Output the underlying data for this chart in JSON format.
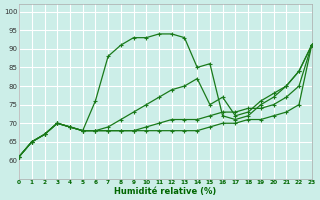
{
  "title": "",
  "xlabel": "Humidité relative (%)",
  "ylabel": "",
  "bg_color": "#cceee8",
  "grid_color": "#ffffff",
  "line_color": "#1a7a1a",
  "xlim": [
    0,
    23
  ],
  "ylim": [
    55,
    102
  ],
  "xticks": [
    0,
    1,
    2,
    3,
    4,
    5,
    6,
    7,
    8,
    9,
    10,
    11,
    12,
    13,
    14,
    15,
    16,
    17,
    18,
    19,
    20,
    21,
    22,
    23
  ],
  "yticks": [
    55,
    60,
    65,
    70,
    75,
    80,
    85,
    90,
    95,
    100
  ],
  "line1_x": [
    0,
    1,
    2,
    3,
    4,
    5,
    6,
    7,
    8,
    9,
    10,
    11,
    12,
    13,
    14,
    15,
    16,
    17,
    18,
    19,
    20,
    21,
    22,
    23
  ],
  "line1_y": [
    61,
    65,
    67,
    70,
    69,
    68,
    76,
    88,
    91,
    93,
    93,
    94,
    94,
    93,
    85,
    86,
    72,
    71,
    72,
    75,
    77,
    80,
    84,
    91
  ],
  "line2_x": [
    0,
    1,
    2,
    3,
    4,
    5,
    6,
    7,
    8,
    9,
    10,
    11,
    12,
    13,
    14,
    15,
    16,
    17,
    18,
    19,
    20,
    21,
    22,
    23
  ],
  "line2_y": [
    61,
    65,
    67,
    70,
    69,
    68,
    68,
    69,
    71,
    73,
    75,
    77,
    79,
    80,
    82,
    75,
    77,
    72,
    73,
    76,
    78,
    80,
    84,
    91
  ],
  "line3_x": [
    0,
    1,
    2,
    3,
    4,
    5,
    6,
    7,
    8,
    9,
    10,
    11,
    12,
    13,
    14,
    15,
    16,
    17,
    18,
    19,
    20,
    21,
    22,
    23
  ],
  "line3_y": [
    61,
    65,
    67,
    70,
    69,
    68,
    68,
    68,
    68,
    68,
    69,
    70,
    71,
    71,
    71,
    72,
    73,
    73,
    74,
    74,
    75,
    77,
    80,
    91
  ],
  "line4_x": [
    0,
    1,
    2,
    3,
    4,
    5,
    6,
    7,
    8,
    9,
    10,
    11,
    12,
    13,
    14,
    15,
    16,
    17,
    18,
    19,
    20,
    21,
    22,
    23
  ],
  "line4_y": [
    61,
    65,
    67,
    70,
    69,
    68,
    68,
    68,
    68,
    68,
    68,
    68,
    68,
    68,
    68,
    69,
    70,
    70,
    71,
    71,
    72,
    73,
    75,
    91
  ]
}
